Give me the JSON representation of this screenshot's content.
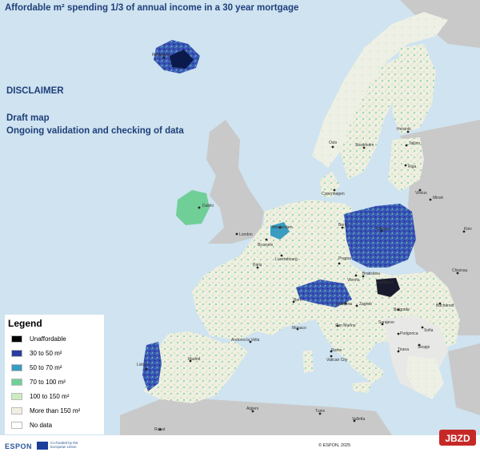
{
  "title": "Affordable m² spending 1/3 of annual income in a 30 year mortgage",
  "disclaimer": {
    "heading": "DISCLAIMER",
    "line1": "Draft map",
    "line2": "Ongoing validation and checking of data"
  },
  "legend": {
    "title": "Legend",
    "items": [
      {
        "label": "Unaffordable",
        "color": "#000000"
      },
      {
        "label": "30 to 50 m²",
        "color": "#2a3c9e"
      },
      {
        "label": "50 to 70 m²",
        "color": "#3a9cc0"
      },
      {
        "label": "70 to 100 m²",
        "color": "#6fcf97"
      },
      {
        "label": "100 to 150 m²",
        "color": "#cdecc0"
      },
      {
        "label": "More than 150  m²",
        "color": "#f1eee3"
      },
      {
        "label": "No data",
        "color": "#ffffff"
      }
    ]
  },
  "cities": [
    {
      "name": "Reykjavik"
    },
    {
      "name": "Oslo"
    },
    {
      "name": "Helsinki"
    },
    {
      "name": "Stockholm"
    },
    {
      "name": "Tallinn"
    },
    {
      "name": "Riga"
    },
    {
      "name": "Vilnius"
    },
    {
      "name": "Minsk"
    },
    {
      "name": "Copenhagen"
    },
    {
      "name": "Dublin"
    },
    {
      "name": "London"
    },
    {
      "name": "Amsterdam"
    },
    {
      "name": "Berlin"
    },
    {
      "name": "Warsaw"
    },
    {
      "name": "Kiev"
    },
    {
      "name": "Brussels"
    },
    {
      "name": "Luxembourg"
    },
    {
      "name": "Paris"
    },
    {
      "name": "Prague"
    },
    {
      "name": "Vienna"
    },
    {
      "name": "Bratislava"
    },
    {
      "name": "Budapest"
    },
    {
      "name": "Chisinau"
    },
    {
      "name": "Bern"
    },
    {
      "name": "Ljubljana"
    },
    {
      "name": "Zagreb"
    },
    {
      "name": "Belgrade"
    },
    {
      "name": "Bucharest"
    },
    {
      "name": "Monaco"
    },
    {
      "name": "San Marino"
    },
    {
      "name": "Sarajevo"
    },
    {
      "name": "Podgorica"
    },
    {
      "name": "Sofia"
    },
    {
      "name": "Andorra la Vella"
    },
    {
      "name": "Rome"
    },
    {
      "name": "Vatican City"
    },
    {
      "name": "Skopje"
    },
    {
      "name": "Tirana"
    },
    {
      "name": "Madrid"
    },
    {
      "name": "Lisbon"
    },
    {
      "name": "Algiers"
    },
    {
      "name": "Tunis"
    },
    {
      "name": "Valletta"
    },
    {
      "name": "Rabat"
    }
  ],
  "footer": {
    "logo": "ESPON",
    "eu_text": "Co-funded by the European Union",
    "copyright": "© ESPON, 2025"
  },
  "watermark": "JBZD"
}
